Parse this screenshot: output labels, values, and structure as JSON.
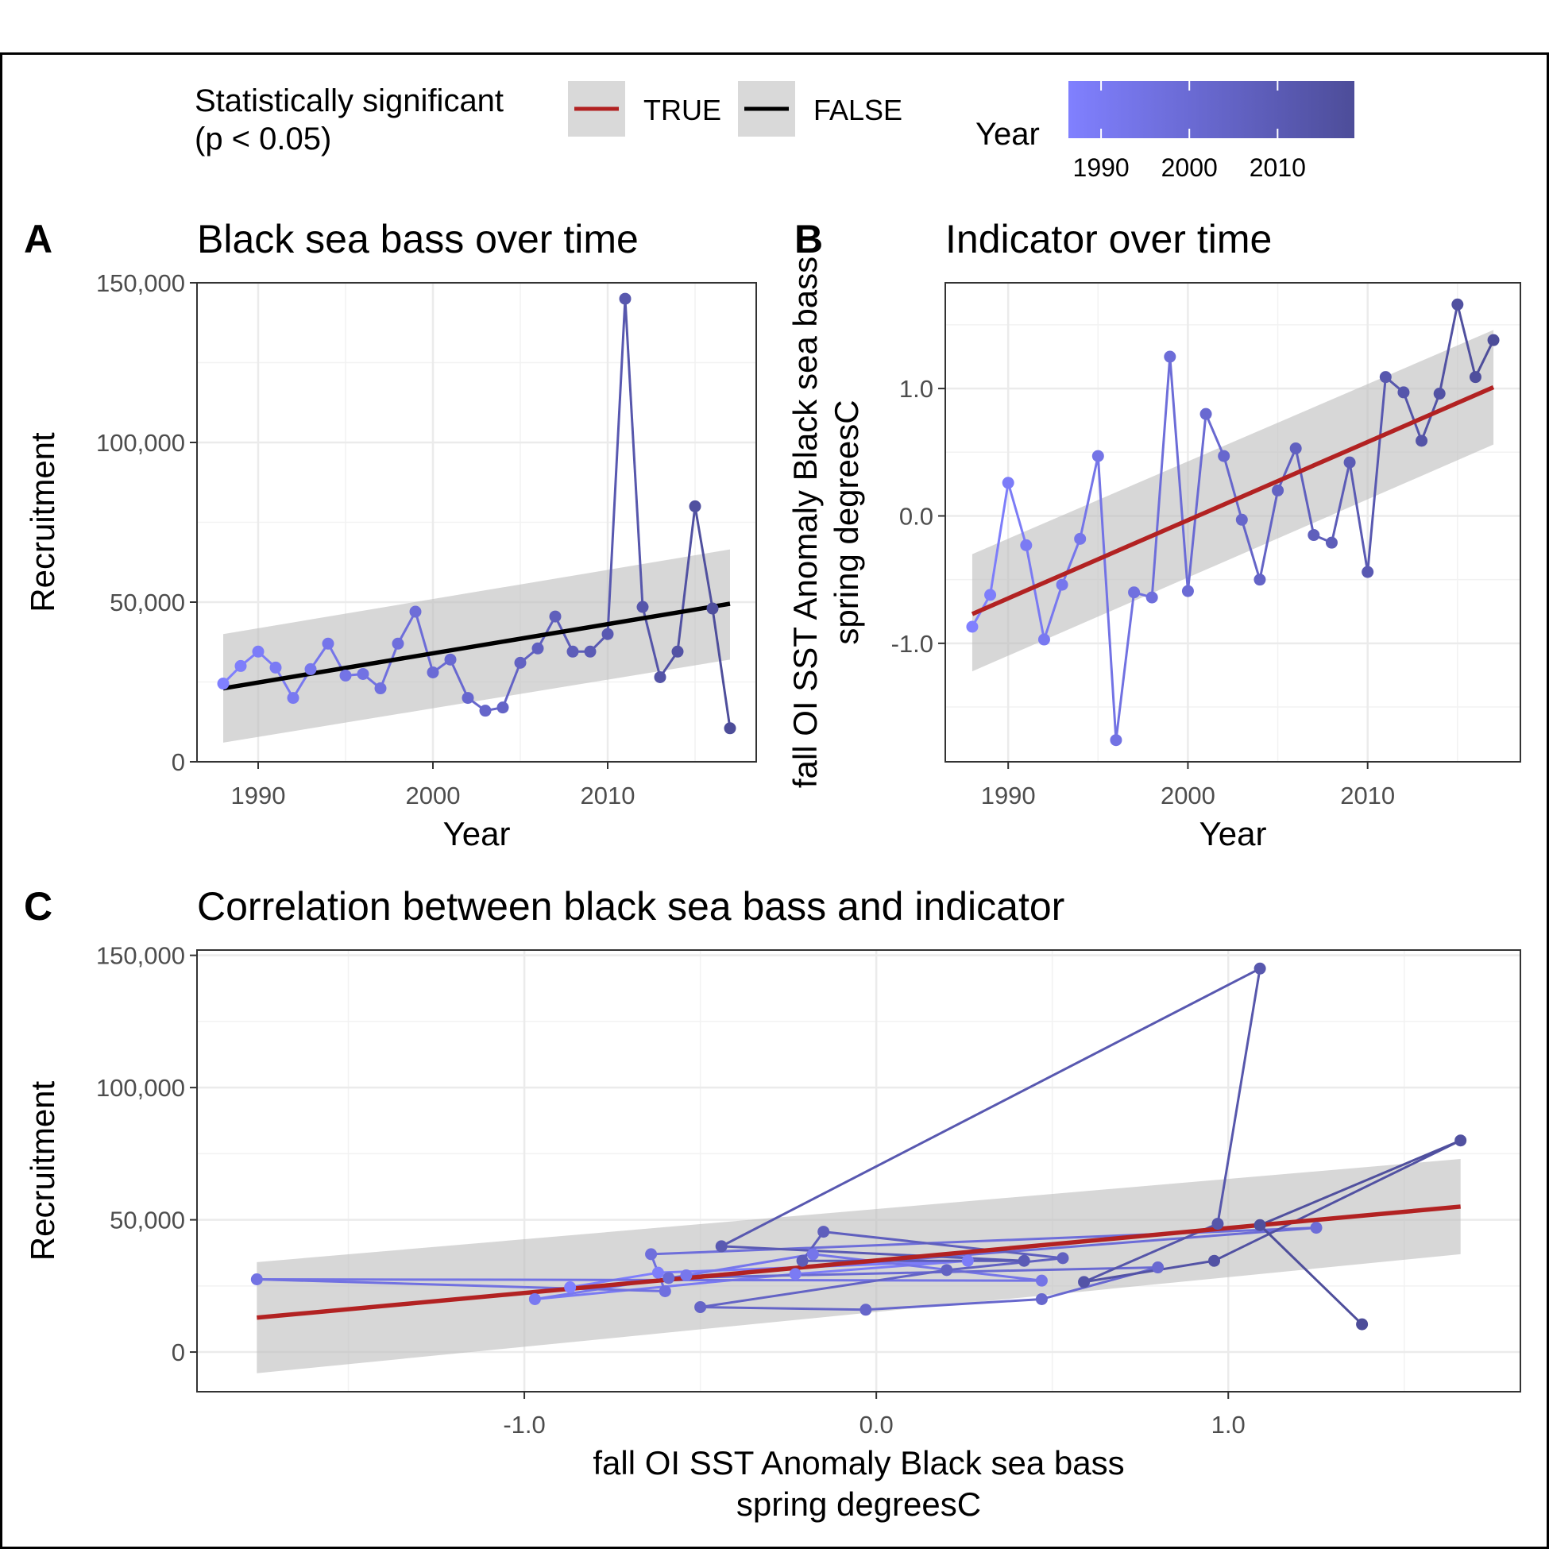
{
  "legend": {
    "significance_title_line1": "Statistically significant",
    "significance_title_line2": "(p < 0.05)",
    "keys": [
      {
        "label": "TRUE",
        "color": "#b22222"
      },
      {
        "label": "FALSE",
        "color": "#000000"
      }
    ],
    "year_title": "Year",
    "year_ticks": [
      "1990",
      "2000",
      "2010"
    ],
    "year_range": [
      1988,
      2017
    ],
    "year_colors": [
      "#8080ff",
      "#4d4d99"
    ]
  },
  "chart_data": [
    {
      "tag": "A",
      "type": "line",
      "title": "Black sea bass over time",
      "xlabel": "Year",
      "ylabel": "Recruitment",
      "xlim": [
        1986.5,
        2018.5
      ],
      "ylim": [
        0,
        150000
      ],
      "xticks": [
        1990,
        2000,
        2010
      ],
      "xtick_labels": [
        "1990",
        "2000",
        "2010"
      ],
      "yticks": [
        0,
        50000,
        100000,
        150000
      ],
      "ytick_labels": [
        "0",
        "50,000",
        "100,000",
        "150,000"
      ],
      "grid": true,
      "series": [
        {
          "x": [
            1988,
            1989,
            1990,
            1991,
            1992,
            1993,
            1994,
            1995,
            1996,
            1997,
            1998,
            1999,
            2000,
            2001,
            2002,
            2003,
            2004,
            2005,
            2006,
            2007,
            2008,
            2009,
            2010,
            2011,
            2012,
            2013,
            2014,
            2015,
            2016,
            2017
          ],
          "y": [
            24500,
            30000,
            34500,
            29500,
            20000,
            29000,
            37000,
            27000,
            27500,
            23000,
            37000,
            47000,
            28000,
            32000,
            20000,
            16000,
            17000,
            31000,
            35500,
            45500,
            34500,
            34500,
            40000,
            145000,
            48500,
            26500,
            34500,
            80000,
            48000,
            10500
          ]
        }
      ],
      "trend": {
        "x": [
          1988,
          2017
        ],
        "y": [
          23000,
          49500
        ],
        "significant": false,
        "ci_lower": [
          6000,
          32000
        ],
        "ci_upper": [
          40000,
          66500
        ]
      }
    },
    {
      "tag": "B",
      "type": "line",
      "title": "Indicator over time",
      "xlabel": "Year",
      "ylabel": "fall OI SST Anomaly Black sea bass\nspring degreesC",
      "xlim": [
        1986.5,
        2018.5
      ],
      "ylim": [
        -1.93,
        1.83
      ],
      "xticks": [
        1990,
        2000,
        2010
      ],
      "xtick_labels": [
        "1990",
        "2000",
        "2010"
      ],
      "yticks": [
        -1.0,
        0.0,
        1.0
      ],
      "ytick_labels": [
        "-1.0",
        "0.0",
        "1.0"
      ],
      "grid": true,
      "series": [
        {
          "x": [
            1988,
            1989,
            1990,
            1991,
            1992,
            1993,
            1994,
            1995,
            1996,
            1997,
            1998,
            1999,
            2000,
            2001,
            2002,
            2003,
            2004,
            2005,
            2006,
            2007,
            2008,
            2009,
            2010,
            2011,
            2012,
            2013,
            2014,
            2015,
            2016,
            2017
          ],
          "y": [
            -0.87,
            -0.62,
            0.26,
            -0.23,
            -0.97,
            -0.54,
            -0.18,
            0.47,
            -1.76,
            -0.6,
            -0.64,
            1.25,
            -0.59,
            0.8,
            0.47,
            -0.03,
            -0.5,
            0.2,
            0.53,
            -0.15,
            -0.21,
            0.42,
            -0.44,
            1.09,
            0.97,
            0.59,
            0.96,
            1.66,
            1.09,
            1.38
          ]
        }
      ],
      "trend": {
        "x": [
          1988,
          2017
        ],
        "y": [
          -0.77,
          1.01
        ],
        "significant": true,
        "ci_lower": [
          -1.22,
          0.56
        ],
        "ci_upper": [
          -0.3,
          1.46
        ]
      }
    },
    {
      "tag": "C",
      "type": "scatter",
      "title": "Correlation between black sea bass and indicator",
      "xlabel": "fall OI SST Anomaly Black sea bass\nspring degreesC",
      "ylabel": "Recruitment",
      "xlim": [
        -1.93,
        1.83
      ],
      "ylim": [
        -15000,
        152000
      ],
      "xticks": [
        -1.0,
        0.0,
        1.0
      ],
      "xtick_labels": [
        "-1.0",
        "0.0",
        "1.0"
      ],
      "yticks": [
        0,
        50000,
        100000,
        150000
      ],
      "ytick_labels": [
        "0",
        "50,000",
        "100,000",
        "150,000"
      ],
      "grid": true,
      "series": [
        {
          "year": [
            1988,
            1989,
            1990,
            1991,
            1992,
            1993,
            1994,
            1995,
            1996,
            1997,
            1998,
            1999,
            2000,
            2001,
            2002,
            2003,
            2004,
            2005,
            2006,
            2007,
            2008,
            2009,
            2010,
            2011,
            2012,
            2013,
            2014,
            2015,
            2016,
            2017
          ],
          "x": [
            -0.87,
            -0.62,
            0.26,
            -0.23,
            -0.97,
            -0.54,
            -0.18,
            0.47,
            -1.76,
            -0.6,
            -0.64,
            1.25,
            -0.59,
            0.8,
            0.47,
            -0.03,
            -0.5,
            0.2,
            0.53,
            -0.15,
            -0.21,
            0.42,
            -0.44,
            1.09,
            0.97,
            0.59,
            0.96,
            1.66,
            1.09,
            1.38
          ],
          "y": [
            24500,
            30000,
            34500,
            29500,
            20000,
            29000,
            37000,
            27000,
            27500,
            23000,
            37000,
            47000,
            28000,
            32000,
            20000,
            16000,
            17000,
            31000,
            35500,
            45500,
            34500,
            34500,
            40000,
            145000,
            48500,
            26500,
            34500,
            80000,
            48000,
            10500
          ]
        }
      ],
      "trend": {
        "x": [
          -1.76,
          1.66
        ],
        "y": [
          13000,
          55000
        ],
        "significant": true,
        "ci_lower": [
          -8000,
          37000
        ],
        "ci_upper": [
          34000,
          73000
        ]
      }
    }
  ]
}
